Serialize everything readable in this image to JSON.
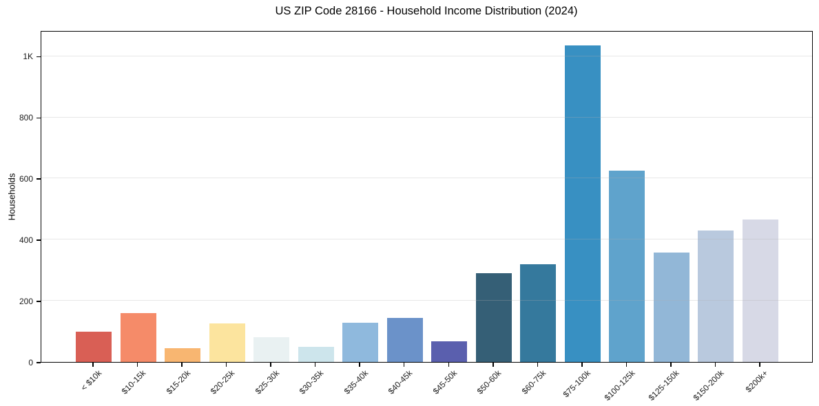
{
  "chart_data": {
    "type": "bar",
    "title": "US ZIP Code 28166 - Household Income Distribution (2024)",
    "xlabel": "",
    "ylabel": "Households",
    "categories": [
      "< $10k",
      "$10-15k",
      "$15-20k",
      "$20-25k",
      "$25-30k",
      "$30-35k",
      "$35-40k",
      "$40-45k",
      "$45-50k",
      "$50-60k",
      "$60-75k",
      "$75-100k",
      "$100-125k",
      "$125-150k",
      "$150-200k",
      "$200k+"
    ],
    "values": [
      100,
      160,
      45,
      125,
      80,
      50,
      128,
      143,
      68,
      290,
      320,
      1035,
      625,
      358,
      430,
      465
    ],
    "bar_colors": [
      "#d95f55",
      "#f58b69",
      "#f8b671",
      "#fce49e",
      "#e9f1f2",
      "#cde5ec",
      "#8fb9dd",
      "#6b92c9",
      "#5a5fae",
      "#355f76",
      "#35799d",
      "#3890c2",
      "#5fa3cc",
      "#92b7d7",
      "#b9c9de",
      "#d7d9e6"
    ],
    "y_ticks": [
      {
        "value": 0,
        "label": "0"
      },
      {
        "value": 200,
        "label": "200"
      },
      {
        "value": 400,
        "label": "400"
      },
      {
        "value": 600,
        "label": "600"
      },
      {
        "value": 800,
        "label": "800"
      },
      {
        "value": 1000,
        "label": "1K"
      }
    ],
    "ylim": [
      0,
      1085
    ],
    "grid": "horizontal",
    "legend": "none",
    "background_color": "#ffffff",
    "gridline_color": "#ebebeb",
    "axis_color": "#000000"
  }
}
